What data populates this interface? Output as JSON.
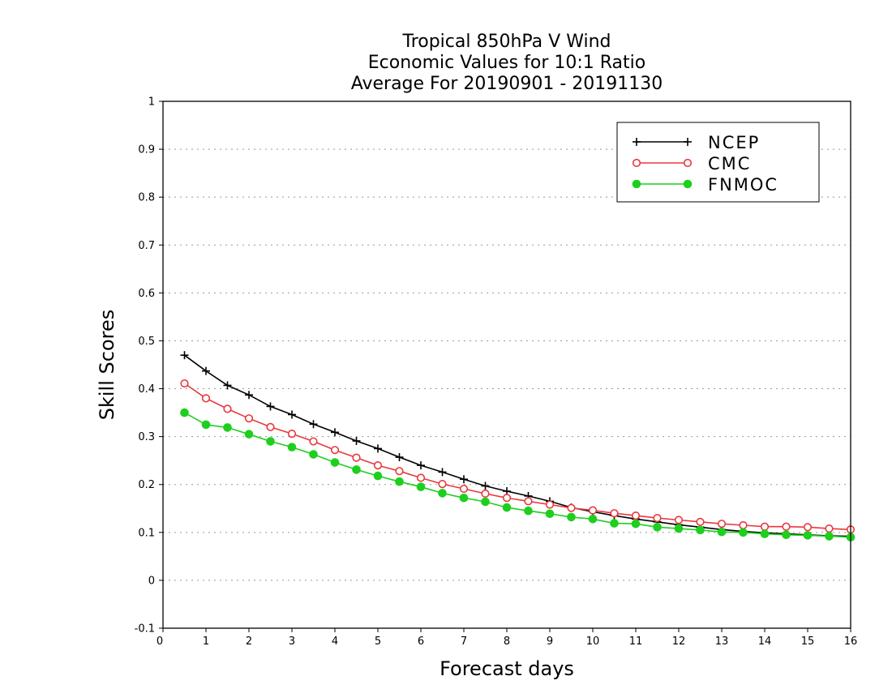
{
  "chart_data": {
    "type": "line",
    "title": [
      "Tropical 850hPa V Wind",
      "Economic Values for 10:1 Ratio",
      "Average For 20190901 - 20191130"
    ],
    "xlabel": "Forecast days",
    "ylabel": "Skill Scores",
    "xlim": [
      0,
      16
    ],
    "ylim": [
      -0.1,
      1
    ],
    "xticks": [
      0,
      1,
      2,
      3,
      4,
      5,
      6,
      7,
      8,
      9,
      10,
      11,
      12,
      13,
      14,
      15,
      16
    ],
    "xtick_labels": [
      "0",
      "1",
      "2",
      "3",
      "4",
      "5",
      "6",
      "7",
      "8",
      "9",
      "10",
      "11",
      "12",
      "13",
      "14",
      "15",
      "16"
    ],
    "yticks": [
      -0.1,
      0,
      0.1,
      0.2,
      0.3,
      0.4,
      0.5,
      0.6,
      0.7,
      0.8,
      0.9,
      1
    ],
    "ytick_labels": [
      "-0.1",
      "0",
      "0.1",
      "0.2",
      "0.3",
      "0.4",
      "0.5",
      "0.6",
      "0.7",
      "0.8",
      "0.9",
      "1"
    ],
    "grid": "horizontal-dotted",
    "legend_position": "top-right",
    "x": [
      0.5,
      1,
      1.5,
      2,
      2.5,
      3,
      3.5,
      4,
      4.5,
      5,
      5.5,
      6,
      6.5,
      7,
      7.5,
      8,
      8.5,
      9,
      9.5,
      10,
      10.5,
      11,
      11.5,
      12,
      12.5,
      13,
      13.5,
      14,
      14.5,
      15,
      15.5,
      16
    ],
    "series": [
      {
        "name": "NCEP",
        "color": "#000000",
        "marker": "plus",
        "values": [
          0.47,
          0.437,
          0.407,
          0.387,
          0.363,
          0.346,
          0.326,
          0.309,
          0.291,
          0.275,
          0.257,
          0.24,
          0.226,
          0.211,
          0.197,
          0.186,
          0.176,
          0.165,
          0.152,
          0.143,
          0.135,
          0.128,
          0.122,
          0.116,
          0.111,
          0.106,
          0.102,
          0.099,
          0.097,
          0.095,
          0.093,
          0.092
        ]
      },
      {
        "name": "CMC",
        "color": "#e8383d",
        "marker": "open-circle",
        "values": [
          0.411,
          0.38,
          0.358,
          0.338,
          0.32,
          0.306,
          0.29,
          0.272,
          0.256,
          0.24,
          0.228,
          0.214,
          0.201,
          0.191,
          0.181,
          0.172,
          0.165,
          0.158,
          0.151,
          0.146,
          0.14,
          0.135,
          0.13,
          0.126,
          0.122,
          0.118,
          0.115,
          0.112,
          0.112,
          0.111,
          0.108,
          0.106
        ]
      },
      {
        "name": "FNMOC",
        "color": "#1ecf1e",
        "marker": "filled-circle",
        "values": [
          0.35,
          0.325,
          0.319,
          0.305,
          0.29,
          0.278,
          0.263,
          0.246,
          0.231,
          0.218,
          0.206,
          0.195,
          0.182,
          0.172,
          0.164,
          0.152,
          0.145,
          0.139,
          0.132,
          0.128,
          0.119,
          0.118,
          0.111,
          0.108,
          0.105,
          0.101,
          0.1,
          0.097,
          0.095,
          0.094,
          0.092,
          0.09
        ]
      }
    ]
  }
}
